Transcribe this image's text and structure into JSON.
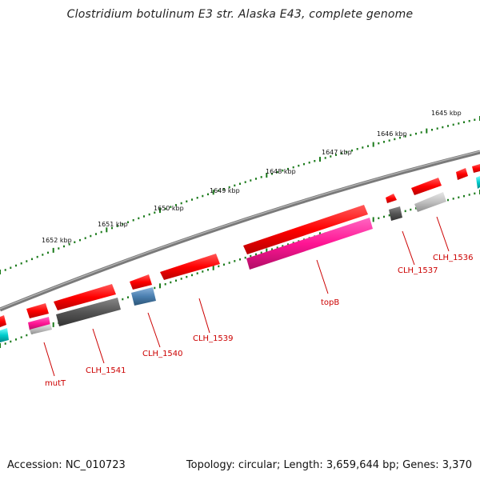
{
  "title": "Clostridium botulinum E3 str. Alaska E43, complete genome",
  "footer": {
    "accession": "Accession: NC_010723",
    "summary": "Topology: circular; Length: 3,659,644 bp; Genes: 3,370"
  },
  "kbp_labels": [
    "1645 kbp",
    "1646 kbp",
    "1647 kbp",
    "1648 kbp",
    "1649 kbp",
    "1650 kbp",
    "1651 kbp",
    "1652 kbp"
  ],
  "gene_labels": [
    "CLH_1536",
    "CLH_1537",
    "topB",
    "CLH_1539",
    "CLH_1540",
    "CLH_1541",
    "mutT"
  ],
  "colors": {
    "backbone": "#808080",
    "cds_forward": "#ff0000",
    "rna": "#ff1493",
    "gene_gray": "#555555",
    "gene_light": "#bbbbbb",
    "gene_blue": "#4a7fb0",
    "cyan": "#00cccc",
    "ticks": "#1a7a1a",
    "label": "#cc0000"
  }
}
